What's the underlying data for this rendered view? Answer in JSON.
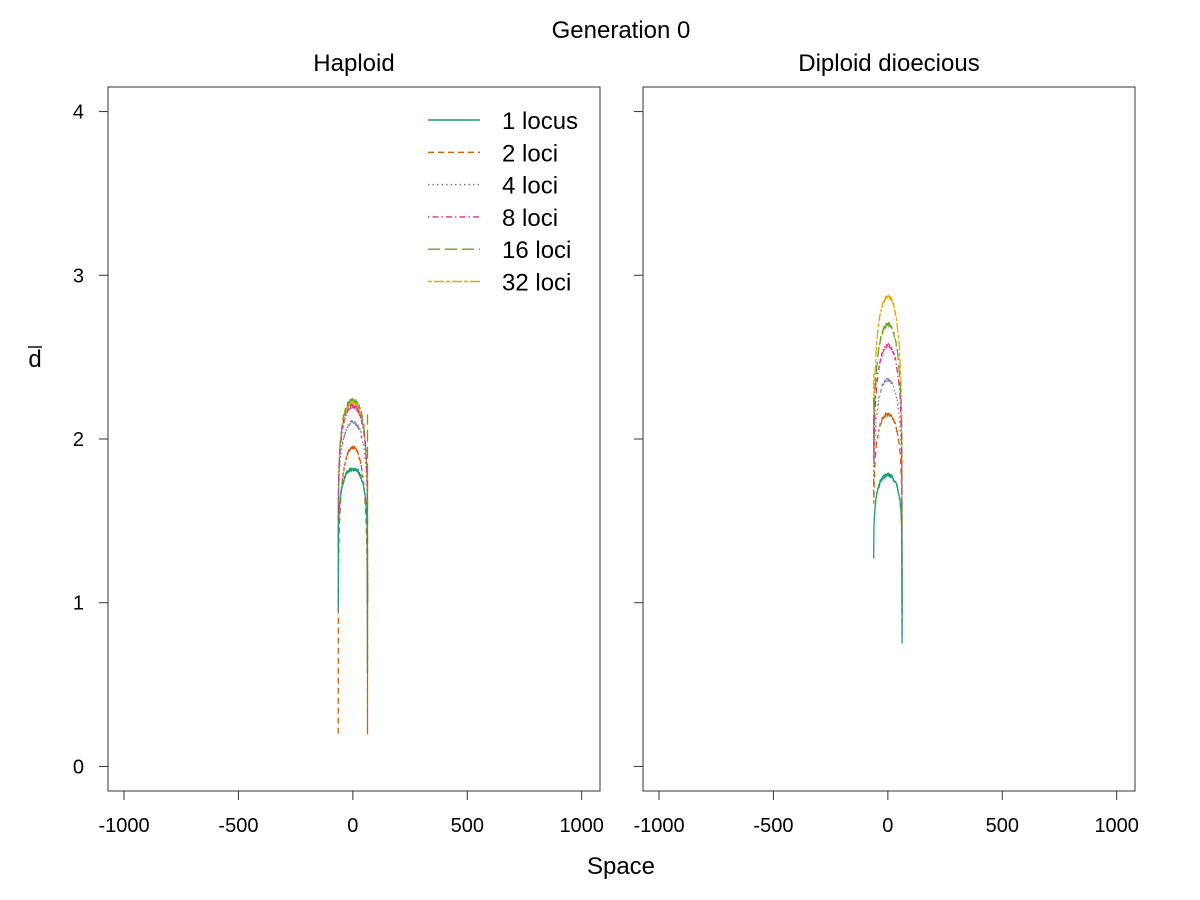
{
  "figure": {
    "title": "Generation 0",
    "xlabel": "Space",
    "ylabel": "d"
  },
  "legend": {
    "placement": "top-right",
    "panel": "Haploid"
  },
  "colors": {
    "1 locus": "#1b9e77",
    "2 loci": "#d95f02",
    "4 loci": "#7570b3",
    "8 loci": "#e7298a",
    "16 loci": "#66a61e",
    "32 loci": "#e6ab02"
  },
  "chart_data": [
    {
      "type": "line",
      "title": "Haploid",
      "xlabel": "Space",
      "ylabel": "d",
      "xlim": [
        -1070,
        1080
      ],
      "ylim": [
        -0.15,
        4.15
      ],
      "x_ticks": [
        -1000,
        -500,
        0,
        500,
        1000
      ],
      "y_ticks": [
        0,
        1,
        2,
        3,
        4
      ],
      "grid": false,
      "series": [
        {
          "name": "1 locus",
          "style": "solid",
          "color": "#1b9e77",
          "x_range": [
            -64,
            64
          ],
          "peak": 1.82,
          "left_end": 0.95,
          "right_end": 0.57
        },
        {
          "name": "2 loci",
          "style": "dashed",
          "color": "#d95f02",
          "x_range": [
            -64,
            64
          ],
          "peak": 1.95,
          "left_end": 0.2,
          "right_end": 1.2
        },
        {
          "name": "4 loci",
          "style": "dotted",
          "color": "#7570b3",
          "x_range": [
            -64,
            64
          ],
          "peak": 2.1,
          "left_end": 1.2,
          "right_end": 1.2
        },
        {
          "name": "8 loci",
          "style": "dotdash",
          "color": "#e7298a",
          "x_range": [
            -64,
            64
          ],
          "peak": 2.2,
          "left_end": 1.3,
          "right_end": 1.2
        },
        {
          "name": "16 loci",
          "style": "longdash",
          "color": "#66a61e",
          "x_range": [
            -64,
            64
          ],
          "peak": 2.24,
          "left_end": 1.4,
          "right_end": 2.15
        },
        {
          "name": "32 loci",
          "style": "twodash",
          "color": "#e6ab02",
          "x_range": [
            -64,
            64
          ],
          "peak": 2.22,
          "left_end": 1.4,
          "right_end": 1.8
        }
      ]
    },
    {
      "type": "line",
      "title": "Diploid dioecious",
      "xlabel": "Space",
      "ylabel": "d",
      "xlim": [
        -1070,
        1080
      ],
      "ylim": [
        -0.15,
        4.15
      ],
      "x_ticks": [
        -1000,
        -500,
        0,
        500,
        1000
      ],
      "y_ticks": [
        0,
        1,
        2,
        3,
        4
      ],
      "grid": false,
      "series": [
        {
          "name": "1 locus",
          "style": "solid",
          "color": "#1b9e77",
          "x_range": [
            -62,
            62
          ],
          "peak": 1.78,
          "left_end": 1.27,
          "right_end": 0.75
        },
        {
          "name": "2 loci",
          "style": "dashed",
          "color": "#d95f02",
          "x_range": [
            -62,
            62
          ],
          "peak": 2.15,
          "left_end": 1.75,
          "right_end": 0.8
        },
        {
          "name": "4 loci",
          "style": "dotted",
          "color": "#7570b3",
          "x_range": [
            -62,
            62
          ],
          "peak": 2.36,
          "left_end": 1.95,
          "right_end": 0.85
        },
        {
          "name": "8 loci",
          "style": "dotdash",
          "color": "#e7298a",
          "x_range": [
            -62,
            62
          ],
          "peak": 2.57,
          "left_end": 2.1,
          "right_end": 0.9
        },
        {
          "name": "16 loci",
          "style": "longdash",
          "color": "#66a61e",
          "x_range": [
            -62,
            62
          ],
          "peak": 2.7,
          "left_end": 2.25,
          "right_end": 0.95
        },
        {
          "name": "32 loci",
          "style": "twodash",
          "color": "#e6ab02",
          "x_range": [
            -62,
            62
          ],
          "peak": 2.87,
          "left_end": 2.4,
          "right_end": 1.0
        }
      ]
    }
  ]
}
